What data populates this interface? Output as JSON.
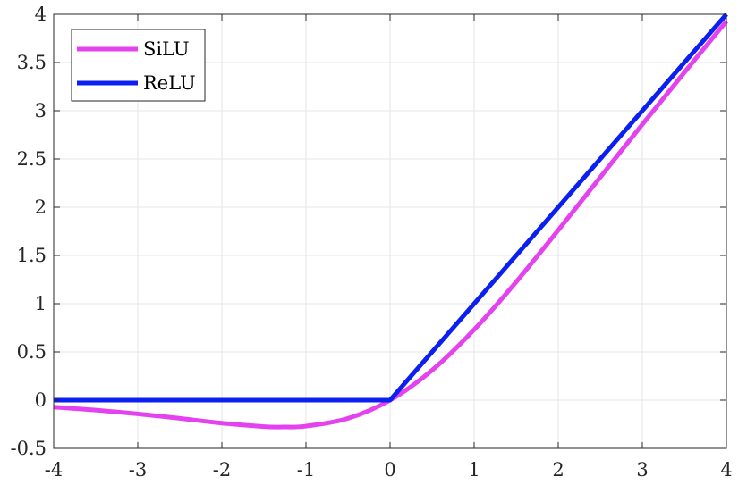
{
  "chart_data": {
    "type": "line",
    "title": "",
    "xlabel": "",
    "ylabel": "",
    "xlim": [
      -4,
      4
    ],
    "ylim": [
      -0.5,
      4
    ],
    "xticks": [
      -4,
      -3,
      -2,
      -1,
      0,
      1,
      2,
      3,
      4
    ],
    "yticks": [
      -0.5,
      0,
      0.5,
      1,
      1.5,
      2,
      2.5,
      3,
      3.5,
      4
    ],
    "xtick_labels": [
      "-4",
      "-3",
      "-2",
      "-1",
      "0",
      "1",
      "2",
      "3",
      "4"
    ],
    "ytick_labels": [
      "-0.5",
      "0",
      "0.5",
      "1",
      "1.5",
      "2",
      "2.5",
      "3",
      "3.5",
      "4"
    ],
    "grid": true,
    "legend_position": "top-left",
    "series": [
      {
        "name": "SiLU",
        "color": "#e442ef",
        "x": [
          -4,
          -3.5,
          -3,
          -2.5,
          -2,
          -1.5,
          -1.28,
          -1,
          -0.5,
          0,
          0.5,
          1,
          1.5,
          2,
          2.5,
          3,
          3.5,
          4
        ],
        "y": [
          -0.072,
          -0.103,
          -0.142,
          -0.189,
          -0.238,
          -0.274,
          -0.278,
          -0.269,
          -0.189,
          0,
          0.311,
          0.731,
          1.226,
          1.762,
          2.311,
          2.858,
          3.397,
          3.928
        ]
      },
      {
        "name": "ReLU",
        "color": "#0a1ff0",
        "x": [
          -4,
          0,
          4
        ],
        "y": [
          0,
          0,
          4
        ]
      }
    ]
  }
}
